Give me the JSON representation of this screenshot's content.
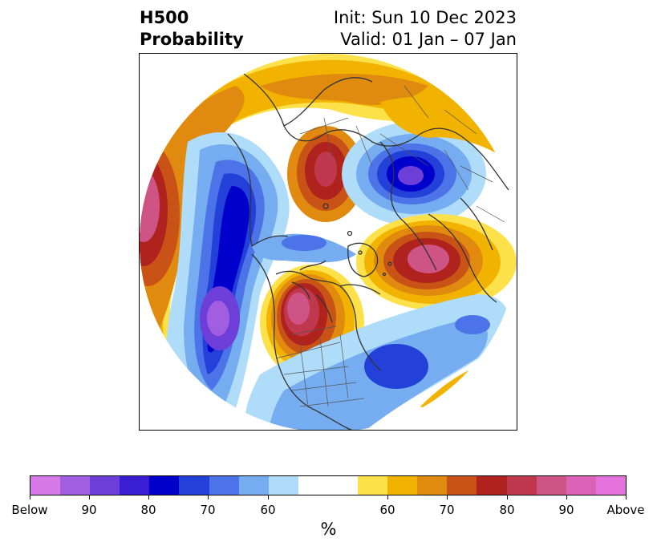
{
  "title": {
    "left_line1": "H500",
    "left_line2": "Probability",
    "right_line1": "Init: Sun 10 Dec 2023",
    "right_line2": "Valid: 01 Jan – 07 Jan"
  },
  "map": {
    "projection": "north polar stereographic",
    "content": "500 hPa height anomaly probability forecast"
  },
  "colorbar": {
    "colors": [
      "#d67ae8",
      "#a25ee0",
      "#6e3fd8",
      "#3a1ed4",
      "#0000cc",
      "#2340d8",
      "#4d73e8",
      "#76adf0",
      "#aedcf9",
      "#ffffff",
      "#ffffff",
      "#fde14a",
      "#f2b300",
      "#e08a10",
      "#c95316",
      "#b0221d",
      "#c0384e",
      "#cf5486",
      "#db62b6",
      "#e573dd"
    ],
    "tick_labels": [
      "Below",
      "90",
      "80",
      "70",
      "60",
      "60",
      "70",
      "80",
      "90",
      "Above"
    ],
    "unit_label": "%"
  },
  "palette": {
    "blue_light": "#aedcf9",
    "blue_mid": "#76adf0",
    "blue_3": "#4d73e8",
    "blue_4": "#2340d8",
    "blue_5": "#0000cc",
    "purple_1": "#3a1ed4",
    "purple_2": "#6e3fd8",
    "purple_3": "#a25ee0",
    "yellow": "#fde14a",
    "gold": "#f2b300",
    "orange": "#e08a10",
    "rust": "#c95316",
    "red": "#b0221d",
    "crimson": "#c0384e",
    "rose": "#cf5486",
    "border": "#333333"
  }
}
